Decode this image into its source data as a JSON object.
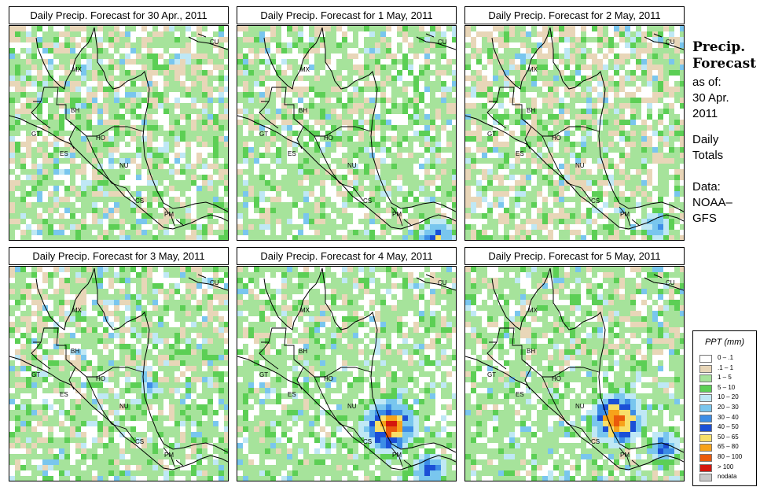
{
  "panels": [
    {
      "title": "Daily Precip. Forecast for  30 Apr., 2011",
      "seed": 11,
      "wet": 0.0,
      "storm": []
    },
    {
      "title": "Daily Precip. Forecast for  1 May, 2011",
      "seed": 23,
      "wet": 0.05,
      "storm": [
        {
          "cx": 250,
          "cy": 268,
          "r": 28,
          "lvl": 8
        }
      ]
    },
    {
      "title": "Daily Precip. Forecast for  2 May, 2011",
      "seed": 37,
      "wet": -0.05,
      "storm": [
        {
          "cx": 240,
          "cy": 250,
          "r": 20,
          "lvl": 7
        }
      ]
    },
    {
      "title": "Daily Precip. Forecast for  3 May, 2011",
      "seed": 41,
      "wet": 0.05,
      "storm": [
        {
          "cx": 175,
          "cy": 150,
          "r": 14,
          "lvl": 6
        }
      ]
    },
    {
      "title": "Daily Precip. Forecast for  4 May, 2011",
      "seed": 59,
      "wet": 0.12,
      "storm": [
        {
          "cx": 190,
          "cy": 200,
          "r": 40,
          "lvl": 11
        },
        {
          "cx": 240,
          "cy": 255,
          "r": 25,
          "lvl": 8
        }
      ]
    },
    {
      "title": "Daily Precip. Forecast for  5 May, 2011",
      "seed": 73,
      "wet": 0.1,
      "storm": [
        {
          "cx": 190,
          "cy": 190,
          "r": 38,
          "lvl": 12
        },
        {
          "cx": 250,
          "cy": 225,
          "r": 22,
          "lvl": 8
        }
      ]
    }
  ],
  "map_labels": [
    "MX",
    "BH",
    "GT",
    "HO",
    "ES",
    "NU",
    "CS",
    "PM",
    "CU"
  ],
  "sidebar": {
    "title_line1": "Precip.",
    "title_line2": "Forecast",
    "as_of_label": "as of:",
    "date_line1": "30 Apr.",
    "date_line2": "2011",
    "totals_line1": "Daily",
    "totals_line2": "Totals",
    "data_line1": "Data:",
    "data_line2": "NOAA–",
    "data_line3": "GFS"
  },
  "legend": {
    "title": "PPT (mm)",
    "items": [
      {
        "label": "0 – .1",
        "color": "#ffffff"
      },
      {
        "label": ".1 – 1",
        "color": "#e8d6b8"
      },
      {
        "label": "1 – 5",
        "color": "#a6e39b"
      },
      {
        "label": "5 – 10",
        "color": "#5ccf55"
      },
      {
        "label": "10 – 20",
        "color": "#bfe8f5"
      },
      {
        "label": "20 – 30",
        "color": "#79c6ee"
      },
      {
        "label": "30 – 40",
        "color": "#3c8de6"
      },
      {
        "label": "40 – 50",
        "color": "#1b4fd6"
      },
      {
        "label": "50 – 65",
        "color": "#f8df6a"
      },
      {
        "label": "65 – 80",
        "color": "#f7a21a"
      },
      {
        "label": "80 – 100",
        "color": "#ea5a0b"
      },
      {
        "label": "> 100",
        "color": "#d4160d"
      },
      {
        "label": "nodata",
        "color": "#c8c8c8"
      }
    ]
  }
}
